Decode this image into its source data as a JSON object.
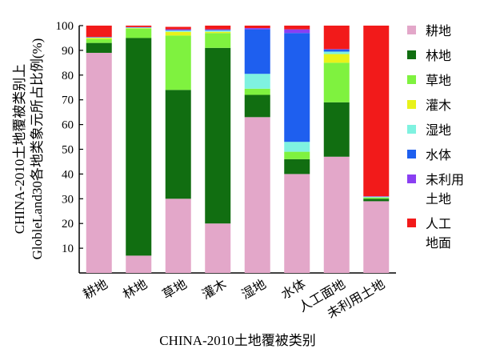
{
  "chart_data": {
    "type": "bar",
    "stacked": true,
    "xlabel": "CHINA-2010土地覆被类别",
    "ylabel": [
      "CHINA-2010土地覆被类别上",
      "GlobleLand30各地类象元所占比例(%)"
    ],
    "ylim": [
      0,
      100
    ],
    "yticks": [
      10,
      20,
      30,
      40,
      50,
      60,
      70,
      80,
      90,
      100
    ],
    "grid": false,
    "legend_position": "right",
    "categories": [
      "耕地",
      "林地",
      "草地",
      "灌木",
      "湿地",
      "水体",
      "人工面地",
      "未利用土地"
    ],
    "series": [
      {
        "name": "耕地",
        "color": "#e3a7c9",
        "values": [
          89,
          7,
          30,
          20,
          63,
          40,
          47,
          29
        ]
      },
      {
        "name": "林地",
        "color": "#116e11",
        "values": [
          4,
          88,
          44,
          71,
          9,
          6,
          22,
          1
        ]
      },
      {
        "name": "草地",
        "color": "#7ff23f",
        "values": [
          1.5,
          3.8,
          22,
          6,
          2.5,
          3,
          16,
          0.5
        ]
      },
      {
        "name": "灌木",
        "color": "#e8f21a",
        "values": [
          0.5,
          0.2,
          1.5,
          0.5,
          0,
          0,
          3.5,
          0
        ]
      },
      {
        "name": "湿地",
        "color": "#7ff2e0",
        "values": [
          0.2,
          0.2,
          0.5,
          0.5,
          6,
          4,
          1,
          0.3
        ]
      },
      {
        "name": "水体",
        "color": "#1e5fef",
        "values": [
          0.1,
          0.1,
          0.2,
          0.3,
          18,
          44,
          0.8,
          0
        ]
      },
      {
        "name": "未利用土地",
        "legend_lines": [
          "未利用",
          "土地"
        ],
        "color": "#8a3ff2",
        "values": [
          0.1,
          0.1,
          0.3,
          0.2,
          0.5,
          1.5,
          0.2,
          0.2
        ]
      },
      {
        "name": "人工地面",
        "legend_lines": [
          "人工",
          "地面"
        ],
        "color": "#f21a1a",
        "values": [
          4.6,
          0.6,
          1,
          1.5,
          1,
          1.5,
          9.5,
          69
        ]
      }
    ]
  }
}
